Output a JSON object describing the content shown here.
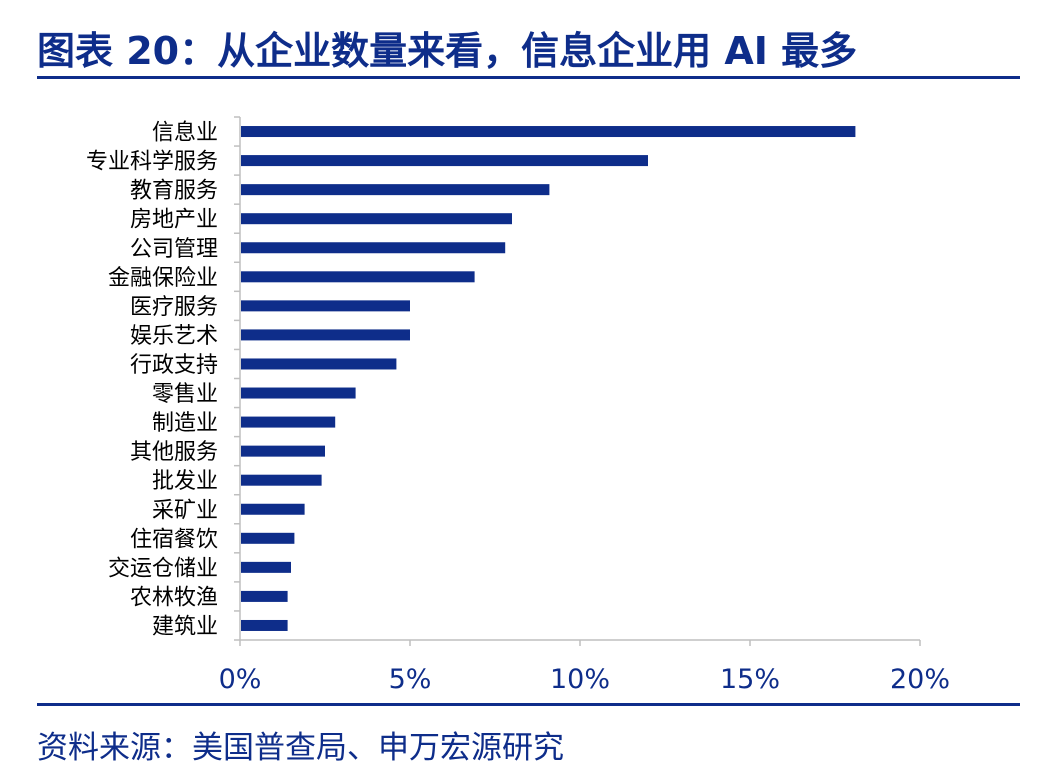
{
  "header": {
    "title": "图表 20：从企业数量来看，信息企业用 AI 最多"
  },
  "footer": {
    "source": "资料来源：美国普查局、申万宏源研究"
  },
  "chart_data": {
    "type": "bar",
    "orientation": "horizontal",
    "title": "",
    "xlabel": "",
    "ylabel": "",
    "categories": [
      "信息业",
      "专业科学服务",
      "教育服务",
      "房地产业",
      "公司管理",
      "金融保险业",
      "医疗服务",
      "娱乐艺术",
      "行政支持",
      "零售业",
      "制造业",
      "其他服务",
      "批发业",
      "采矿业",
      "住宿餐饮",
      "交运仓储业",
      "农林牧渔",
      "建筑业"
    ],
    "values": [
      18.1,
      12.0,
      9.1,
      8.0,
      7.8,
      6.9,
      5.0,
      5.0,
      4.6,
      3.4,
      2.8,
      2.5,
      2.4,
      1.9,
      1.6,
      1.5,
      1.4,
      1.4
    ],
    "value_unit": "%",
    "xlim": [
      0,
      20
    ],
    "xticks": [
      0,
      5,
      10,
      15,
      20
    ],
    "xtick_labels": [
      "0%",
      "5%",
      "10%",
      "15%",
      "20%"
    ],
    "bar_color": "#0e2d8a",
    "axis_color": "#bfbfbf",
    "grid": false,
    "legend": "none"
  }
}
